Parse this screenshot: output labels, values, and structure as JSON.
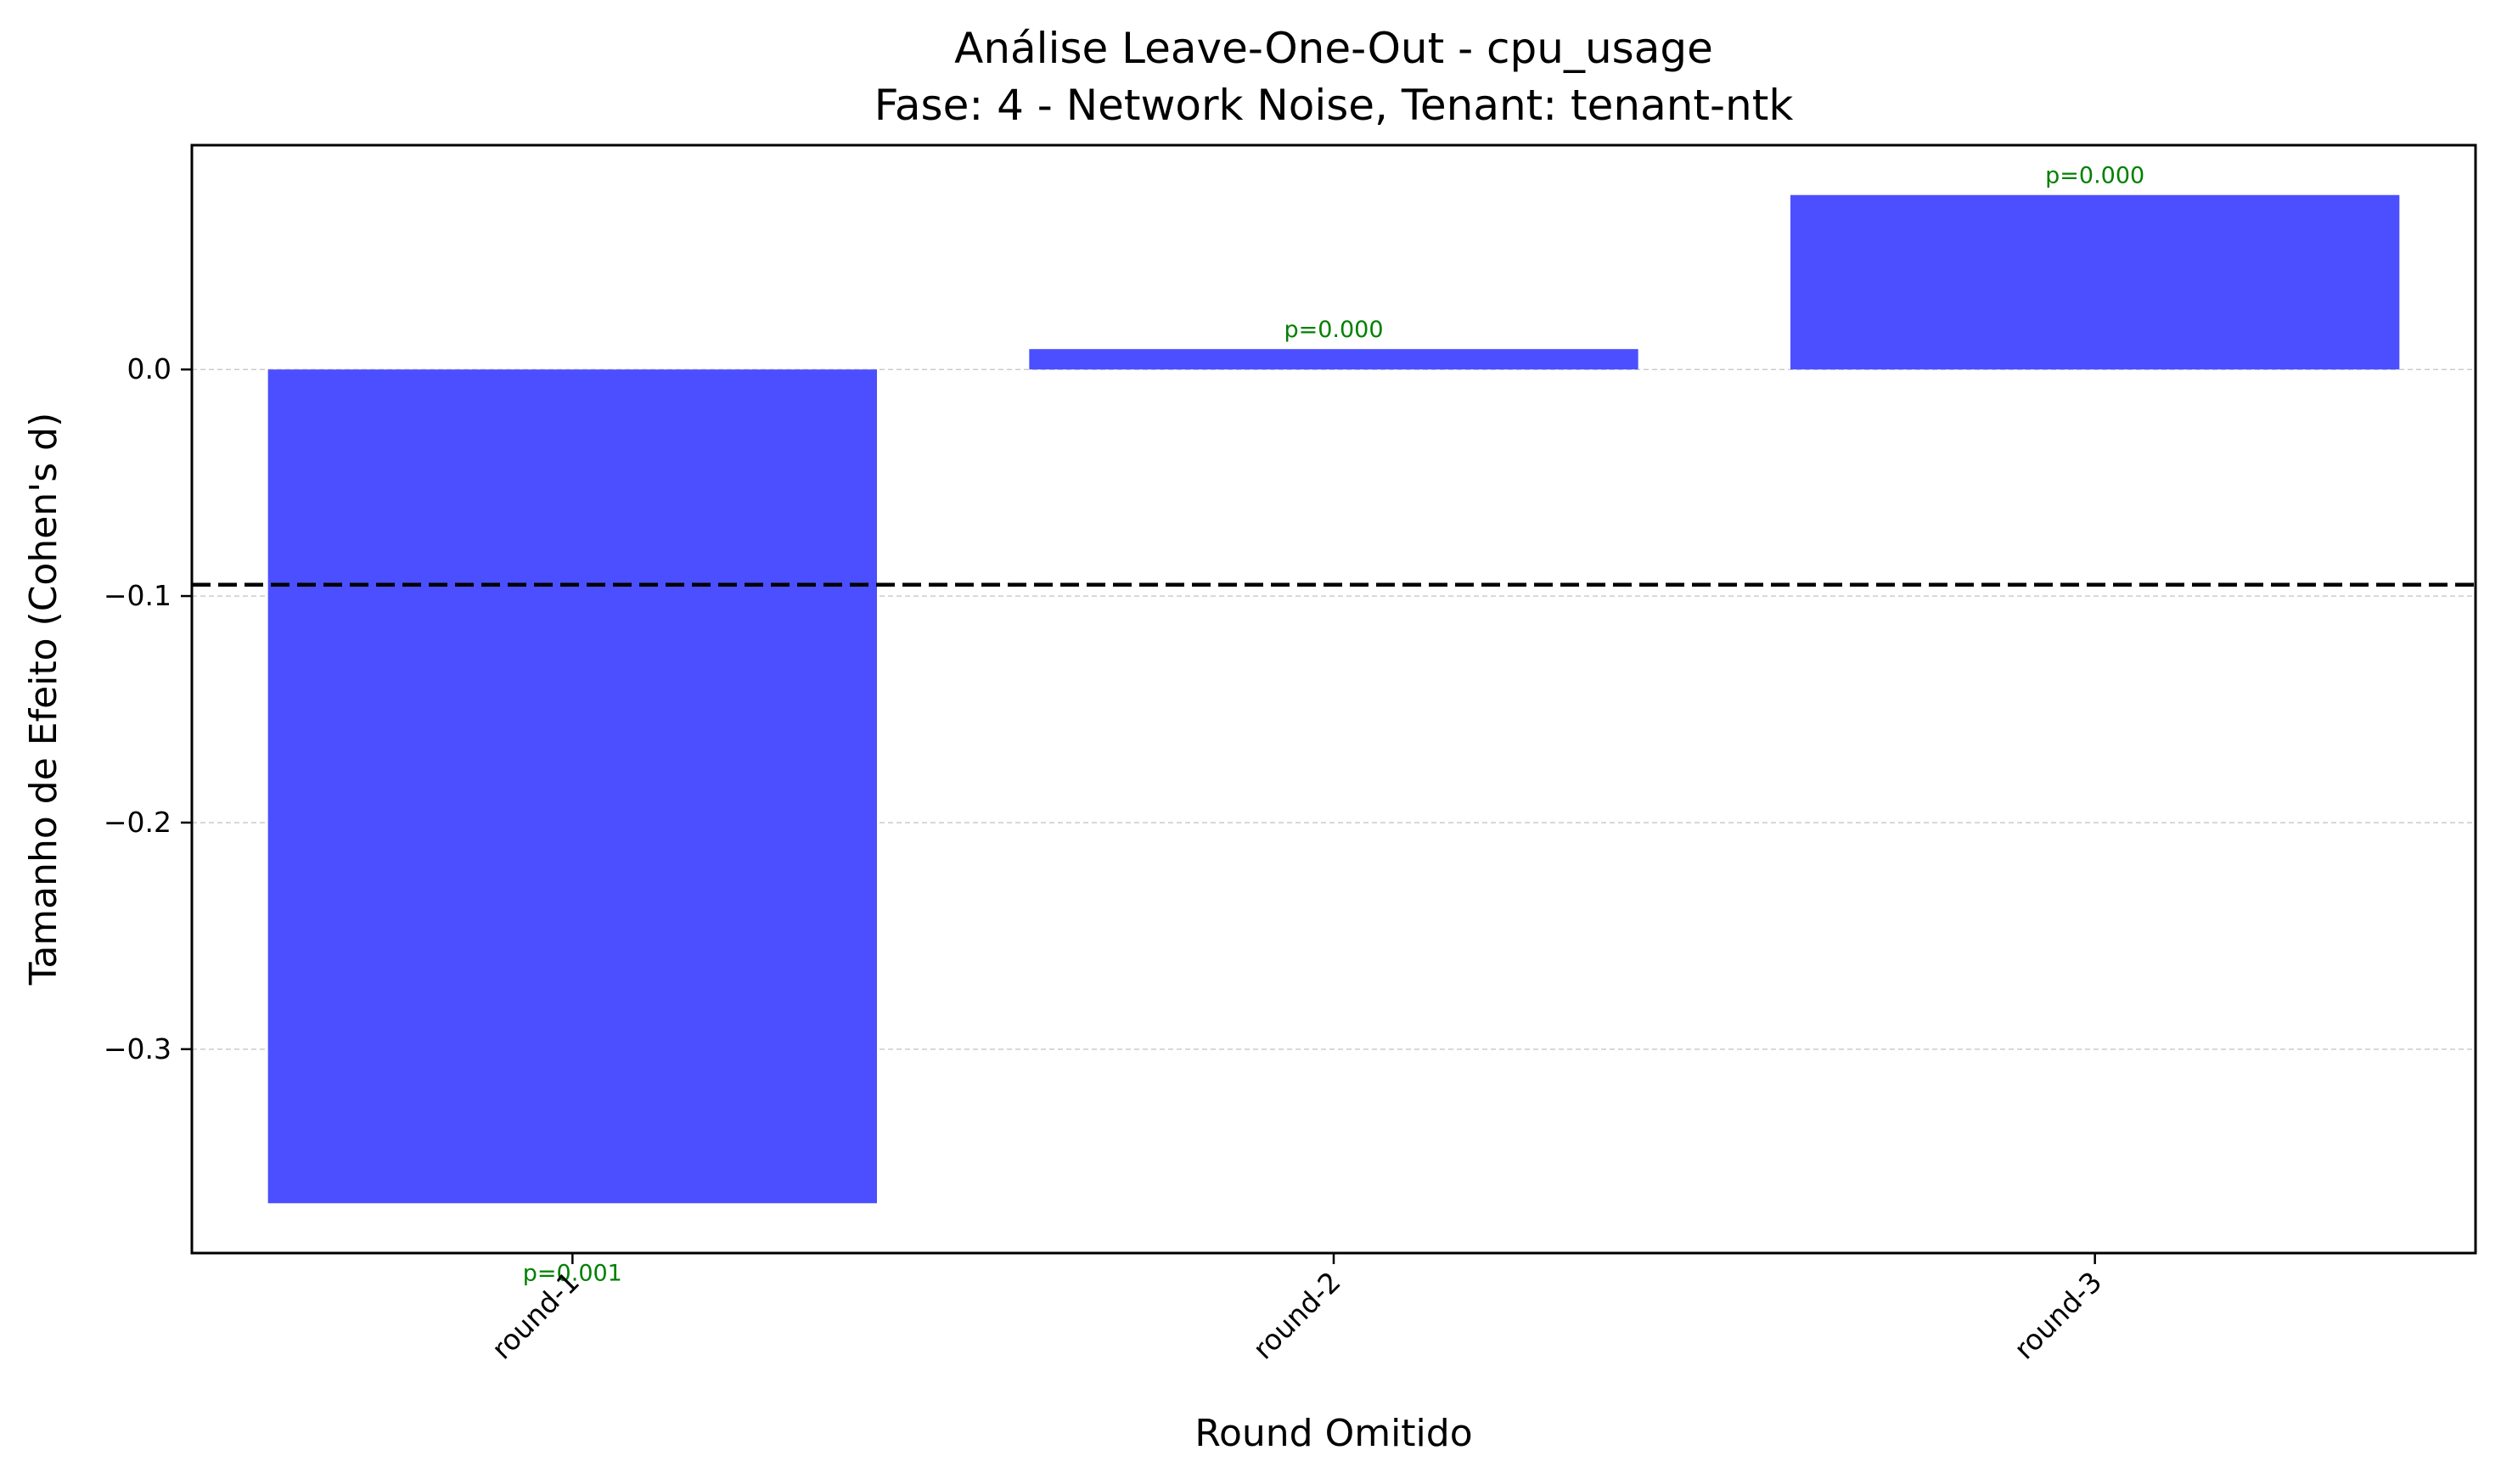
{
  "chart_data": {
    "type": "bar",
    "title": "Análise Leave-One-Out - cpu_usage",
    "subtitle": "Fase: 4 - Network Noise, Tenant: tenant-ntk",
    "xlabel": "Round Omitido",
    "ylabel": "Tamanho de Efeito (Cohen's d)",
    "categories": [
      "round-1",
      "round-2",
      "round-3"
    ],
    "values": [
      -0.368,
      0.009,
      0.077
    ],
    "annotations": [
      "p=0.001",
      "p=0.000",
      "p=0.000"
    ],
    "reference_line": {
      "value": -0.095,
      "style": "dashed",
      "color": "#000000"
    },
    "ylim": [
      -0.39,
      0.099
    ],
    "yticks": [
      0.0,
      -0.1,
      -0.2,
      -0.3
    ],
    "ytick_labels": [
      "0.0",
      "−0.1",
      "−0.2",
      "−0.3"
    ],
    "grid": "y",
    "bar_color": "#4b4fff",
    "annotation_color": "#008000"
  }
}
